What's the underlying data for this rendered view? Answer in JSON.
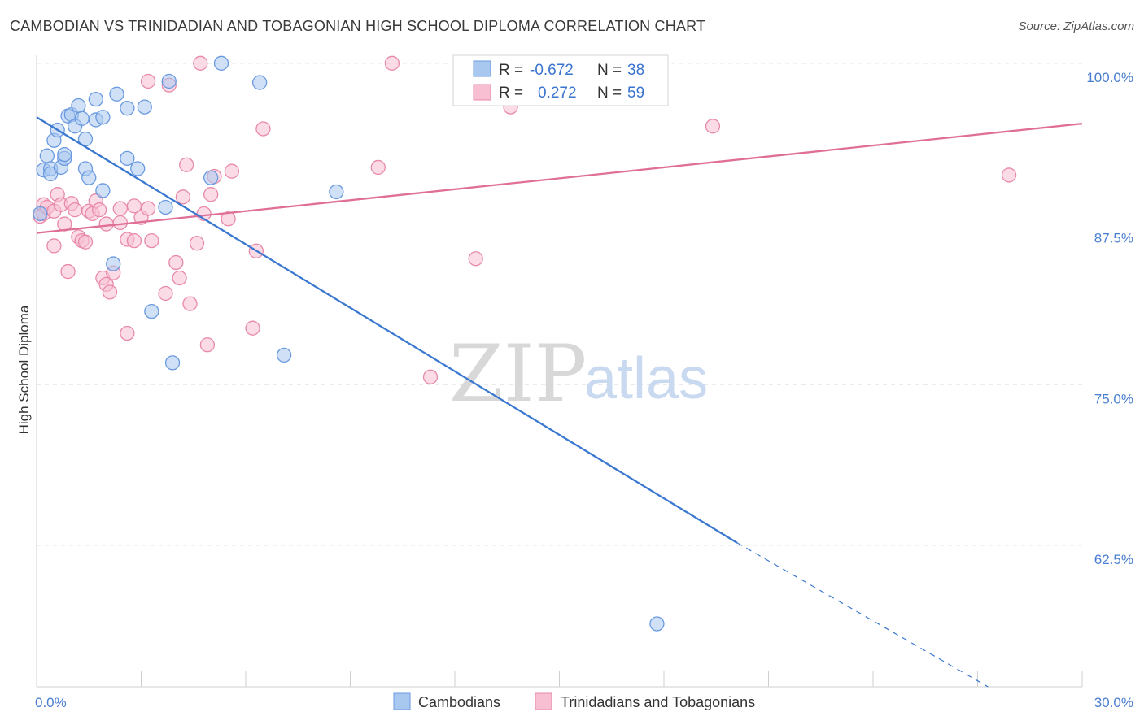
{
  "title": "CAMBODIAN VS TRINIDADIAN AND TOBAGONIAN HIGH SCHOOL DIPLOMA CORRELATION CHART",
  "source": "Source: ZipAtlas.com",
  "watermark": {
    "zip": "ZIP",
    "atlas": "atlas"
  },
  "legend": {
    "rows": [
      {
        "r_label": "R =",
        "r_value": "-0.672",
        "n_label": "N =",
        "n_value": "38",
        "color": "#a9c8f0",
        "stroke": "#6a9ae0"
      },
      {
        "r_label": "R =",
        "r_value": "0.272",
        "n_label": "N =",
        "n_value": "59",
        "color": "#f8bfd2",
        "stroke": "#e889a9"
      }
    ]
  },
  "bottom_legend": [
    {
      "label": "Cambodians",
      "color": "#a9c8f0",
      "stroke": "#6a9ae0"
    },
    {
      "label": "Trinidadians and Tobagonians",
      "color": "#f8bfd2",
      "stroke": "#e889a9"
    }
  ],
  "chart_data": {
    "type": "scatter",
    "title": "CAMBODIAN VS TRINIDADIAN AND TOBAGONIAN HIGH SCHOOL DIPLOMA CORRELATION CHART",
    "xlabel": "",
    "ylabel": "High School Diploma",
    "xlim": [
      0,
      30
    ],
    "ylim": [
      51.5,
      101
    ],
    "x_tick_labels": [
      "0.0%",
      "30.0%"
    ],
    "y_ticks": [
      62.5,
      75.0,
      87.5,
      100.0
    ],
    "y_tick_labels": [
      "62.5%",
      "75.0%",
      "87.5%",
      "100.0%"
    ],
    "grid": "horizontal dashed",
    "legend_position": "top-center",
    "series": [
      {
        "name": "Cambodians",
        "color": "#6a9ae0",
        "fill": "#a9c8f0",
        "points": [
          [
            0.2,
            91.7
          ],
          [
            0.3,
            92.8
          ],
          [
            0.4,
            91.8
          ],
          [
            0.4,
            91.4
          ],
          [
            0.5,
            94.0
          ],
          [
            0.6,
            94.8
          ],
          [
            0.7,
            91.9
          ],
          [
            0.8,
            92.6
          ],
          [
            0.8,
            92.9
          ],
          [
            0.9,
            95.9
          ],
          [
            1.0,
            96.0
          ],
          [
            1.1,
            95.1
          ],
          [
            1.2,
            96.7
          ],
          [
            1.3,
            95.7
          ],
          [
            1.4,
            94.1
          ],
          [
            1.4,
            91.8
          ],
          [
            1.5,
            91.1
          ],
          [
            1.7,
            97.2
          ],
          [
            1.7,
            95.6
          ],
          [
            1.9,
            95.8
          ],
          [
            1.9,
            90.1
          ],
          [
            2.2,
            84.4
          ],
          [
            2.3,
            97.6
          ],
          [
            2.6,
            96.5
          ],
          [
            2.6,
            92.6
          ],
          [
            2.9,
            91.8
          ],
          [
            3.1,
            96.6
          ],
          [
            3.3,
            80.7
          ],
          [
            3.7,
            88.8
          ],
          [
            3.8,
            98.6
          ],
          [
            3.9,
            76.7
          ],
          [
            5.0,
            91.1
          ],
          [
            5.3,
            100.0
          ],
          [
            6.4,
            98.5
          ],
          [
            7.1,
            77.3
          ],
          [
            8.6,
            90.0
          ],
          [
            17.8,
            56.4
          ],
          [
            0.1,
            88.3
          ]
        ],
        "trend": {
          "x": [
            0,
            20.1
          ],
          "y": [
            95.8,
            62.7
          ],
          "dashed_extension": {
            "x": [
              20.1,
              27.3
            ],
            "y": [
              62.7,
              51.5
            ]
          }
        }
      },
      {
        "name": "Trinidadians and Tobagonians",
        "color": "#e889a9",
        "fill": "#f8bfd2",
        "points": [
          [
            0.1,
            88.1
          ],
          [
            0.2,
            88.3
          ],
          [
            0.2,
            89.0
          ],
          [
            0.3,
            88.8
          ],
          [
            0.5,
            88.5
          ],
          [
            0.5,
            85.8
          ],
          [
            0.6,
            89.8
          ],
          [
            0.7,
            89.0
          ],
          [
            0.8,
            87.5
          ],
          [
            0.9,
            83.8
          ],
          [
            1.0,
            89.1
          ],
          [
            1.1,
            88.6
          ],
          [
            1.2,
            86.5
          ],
          [
            1.3,
            86.2
          ],
          [
            1.4,
            86.1
          ],
          [
            1.5,
            88.5
          ],
          [
            1.6,
            88.3
          ],
          [
            1.7,
            89.3
          ],
          [
            1.8,
            88.6
          ],
          [
            1.9,
            83.3
          ],
          [
            2.0,
            87.5
          ],
          [
            2.0,
            82.8
          ],
          [
            2.1,
            82.2
          ],
          [
            2.2,
            83.7
          ],
          [
            2.4,
            87.6
          ],
          [
            2.4,
            88.7
          ],
          [
            2.6,
            79.0
          ],
          [
            2.6,
            86.3
          ],
          [
            2.8,
            88.9
          ],
          [
            2.8,
            86.2
          ],
          [
            3.0,
            88.0
          ],
          [
            3.2,
            88.7
          ],
          [
            3.2,
            98.6
          ],
          [
            3.3,
            86.2
          ],
          [
            3.7,
            82.1
          ],
          [
            3.8,
            98.3
          ],
          [
            4.0,
            84.5
          ],
          [
            4.1,
            83.3
          ],
          [
            4.2,
            89.6
          ],
          [
            4.3,
            92.1
          ],
          [
            4.4,
            81.3
          ],
          [
            4.6,
            86.0
          ],
          [
            4.7,
            100.0
          ],
          [
            4.8,
            88.3
          ],
          [
            4.9,
            78.1
          ],
          [
            5.0,
            89.8
          ],
          [
            5.1,
            91.2
          ],
          [
            5.5,
            87.9
          ],
          [
            5.6,
            91.6
          ],
          [
            6.2,
            79.4
          ],
          [
            6.3,
            85.4
          ],
          [
            6.5,
            94.9
          ],
          [
            9.8,
            91.9
          ],
          [
            10.2,
            100.0
          ],
          [
            11.3,
            75.6
          ],
          [
            12.6,
            84.8
          ],
          [
            13.6,
            96.6
          ],
          [
            19.4,
            95.1
          ],
          [
            27.9,
            91.3
          ]
        ],
        "trend": {
          "x": [
            0,
            30
          ],
          "y": [
            86.8,
            95.3
          ]
        }
      }
    ]
  }
}
